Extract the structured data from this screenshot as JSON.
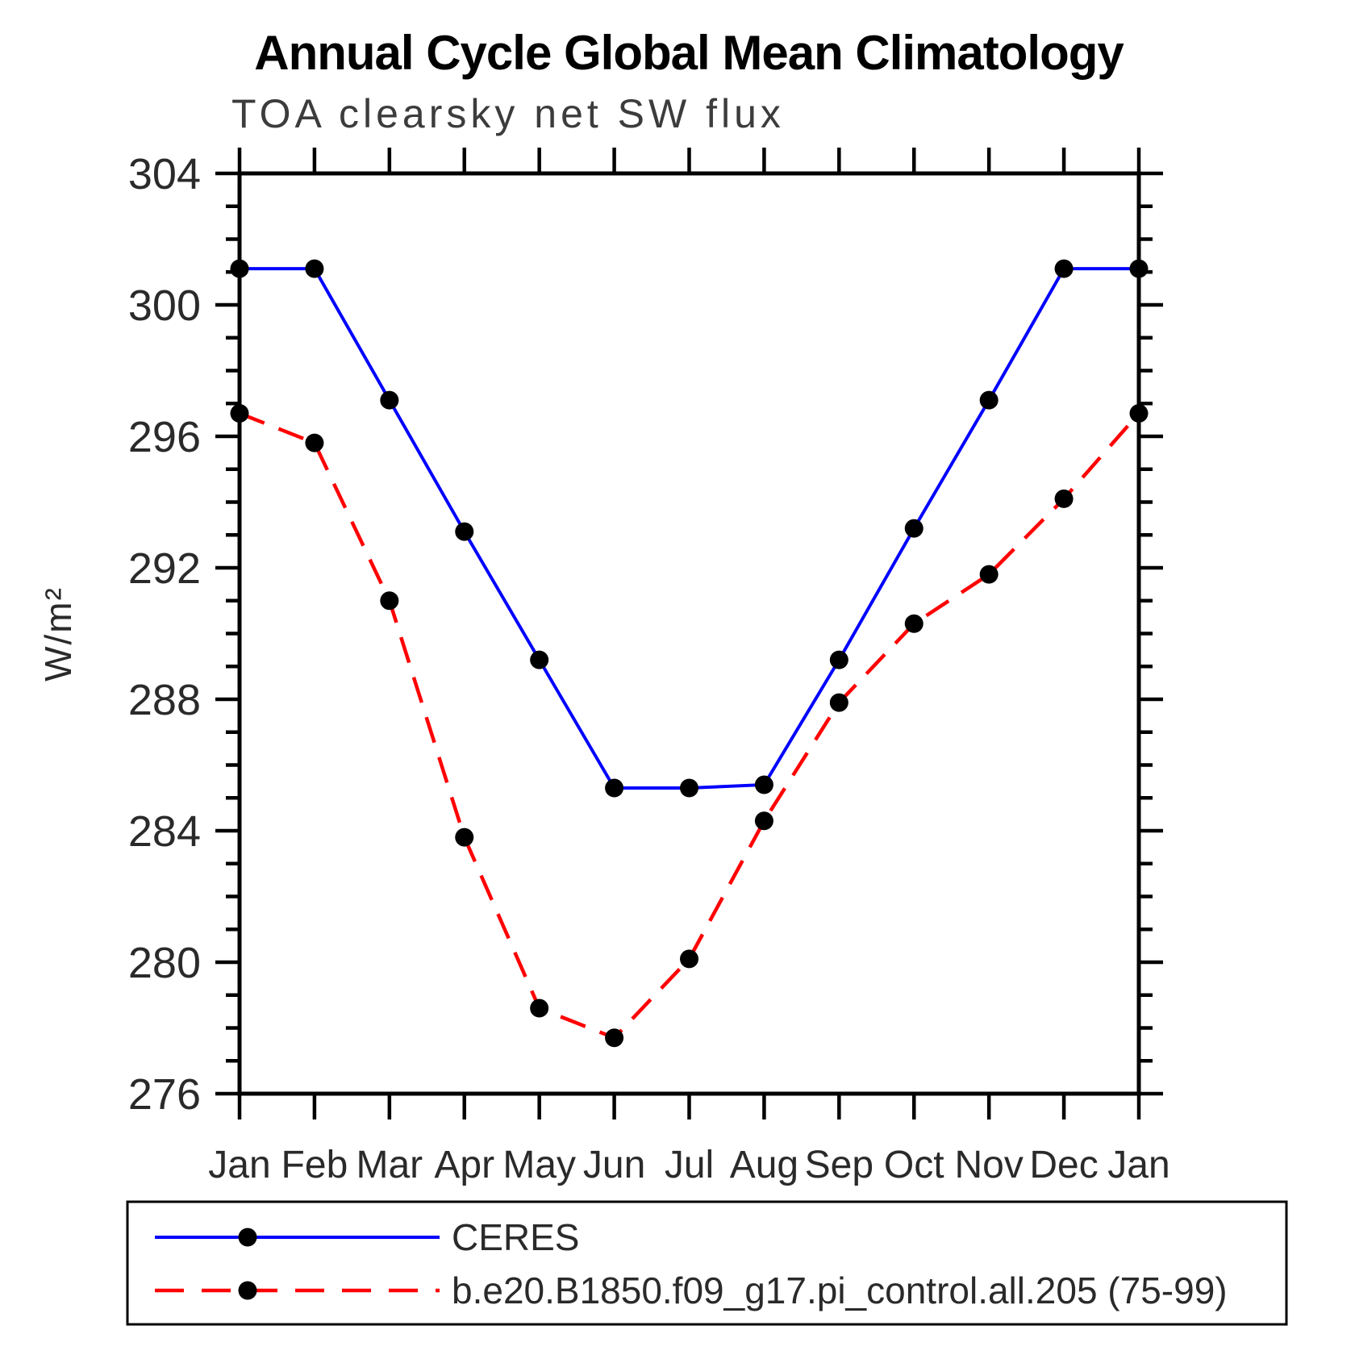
{
  "title": "Annual Cycle Global Mean Climatology",
  "subtitle": "TOA clearsky net SW flux",
  "y_axis_label": "W/m²",
  "chart_data": {
    "type": "line",
    "x_categories": [
      "Jan",
      "Feb",
      "Mar",
      "Apr",
      "May",
      "Jun",
      "Jul",
      "Aug",
      "Sep",
      "Oct",
      "Nov",
      "Dec",
      "Jan"
    ],
    "series": [
      {
        "name": "CERES",
        "line_color": "#0000ff",
        "line_style": "solid",
        "marker": "circle",
        "marker_color": "#000000",
        "values": [
          301.1,
          301.1,
          297.1,
          293.1,
          289.2,
          285.3,
          285.3,
          285.4,
          289.2,
          293.2,
          297.1,
          301.1,
          301.1
        ]
      },
      {
        "name": "b.e20.B1850.f09_g17.pi_control.all.205 (75-99)",
        "line_color": "#ff0000",
        "line_style": "dashed",
        "marker": "circle",
        "marker_color": "#000000",
        "values": [
          296.7,
          295.8,
          291.0,
          283.8,
          278.6,
          277.7,
          280.1,
          284.3,
          287.9,
          290.3,
          291.8,
          294.1,
          296.7
        ]
      }
    ],
    "ylim": [
      276,
      304
    ],
    "y_major_ticks": [
      276,
      280,
      284,
      288,
      292,
      296,
      300,
      304
    ],
    "y_minor_step": 1,
    "x_axis_ticks": "months outward top and bottom",
    "grid": "off",
    "legend_position": "bottom-left box",
    "axis_color": "#000000"
  }
}
